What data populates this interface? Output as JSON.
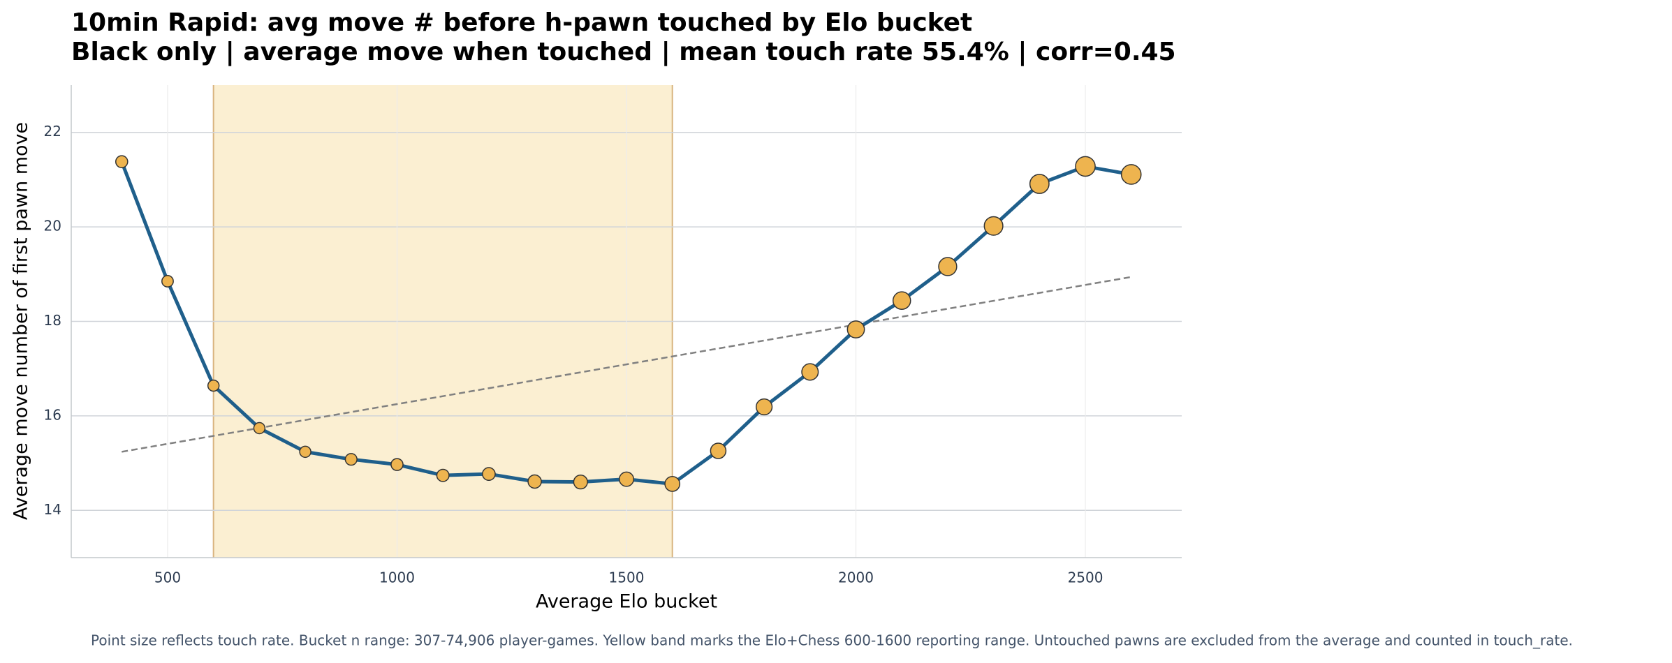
{
  "chart_data": {
    "type": "line",
    "title": "10min Rapid: avg move # before h-pawn touched by Elo bucket",
    "subtitle": "Black only | average move when touched | mean touch rate 55.4% | corr=0.45",
    "x_label": "Average Elo bucket",
    "y_label": "Average move number of first pawn move",
    "footnote": "Point size reflects touch rate. Bucket n range: 307-74,906 player-games. Yellow band marks the Elo+Chess 600-1600 reporting range. Untouched pawns are excluded from the average and counted in touch_rate.",
    "x": [
      400,
      500,
      600,
      700,
      800,
      900,
      1000,
      1100,
      1200,
      1300,
      1400,
      1500,
      1600,
      1700,
      1800,
      1900,
      2000,
      2100,
      2200,
      2300,
      2400,
      2500,
      2600
    ],
    "series": [
      {
        "color": "#1f5f8b",
        "marker_color": "#eeb44f",
        "values": [
          21.38,
          18.85,
          16.64,
          15.74,
          15.24,
          15.08,
          14.97,
          14.74,
          14.77,
          14.61,
          14.6,
          14.66,
          14.56,
          15.26,
          16.19,
          16.93,
          17.83,
          18.44,
          19.16,
          20.02,
          20.91,
          21.28,
          21.11
        ],
        "sizes": [
          45,
          43,
          42,
          42,
          42,
          44,
          45,
          46,
          48,
          50,
          52,
          54,
          56,
          58,
          60,
          62,
          64,
          66,
          68,
          70,
          72,
          74,
          74
        ]
      }
    ],
    "trend": {
      "color": "#808080",
      "x": [
        400,
        2600
      ],
      "values": [
        15.24,
        18.94
      ]
    },
    "band": {
      "x": [
        600,
        1600
      ],
      "color": "#fbefd2",
      "edge_color": "#d9b47f"
    },
    "xlim": [
      290,
      2710
    ],
    "ylim": [
      13,
      23
    ],
    "xticks": [
      500,
      1000,
      1500,
      2000,
      2500
    ],
    "yticks": [
      14,
      16,
      18,
      20,
      22
    ],
    "grid": true
  }
}
